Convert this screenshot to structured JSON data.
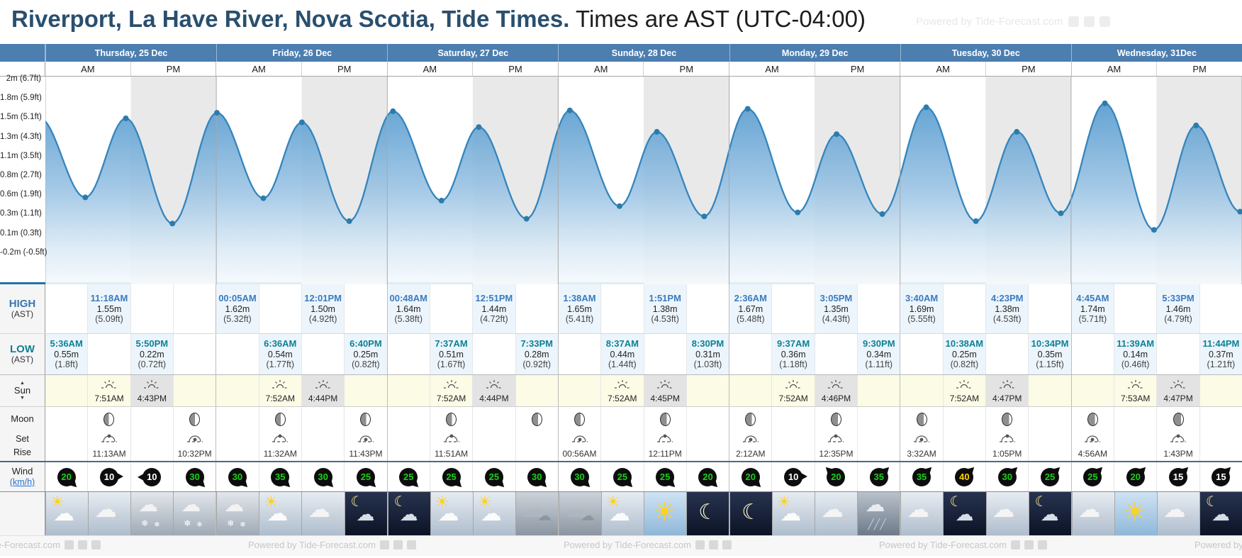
{
  "header": {
    "title": "Riverport, La Have River, Nova Scotia, Tide Times.",
    "subtitle": " Times are AST (UTC-04:00)",
    "watermark": "Powered by Tide-Forecast.com"
  },
  "table": {
    "days": [
      "Thursday, 25 Dec",
      "Friday, 26 Dec",
      "Saturday, 27 Dec",
      "Sunday, 28 Dec",
      "Monday, 29 Dec",
      "Tuesday, 30 Dec",
      "Wednesday, 31Dec"
    ],
    "meridiem": [
      "AM",
      "PM"
    ]
  },
  "chart_data": {
    "type": "area",
    "title": "7-day tide height curve",
    "ylabel_ticks": [
      "2m (6.7ft)",
      "1.8m (5.9ft)",
      "1.5m (5.1ft)",
      "1.3m (4.3ft)",
      "1.1m (3.5ft)",
      "0.8m (2.7ft)",
      "0.6m (1.9ft)",
      "0.3m (1.1ft)",
      "0.1m (0.3ft)",
      "-0.2m (-0.5ft)"
    ],
    "ylim_ft": [
      -0.5,
      6.7
    ],
    "x_unit": "hours from Thursday 00:00",
    "edge_start": {
      "hour": -0.9,
      "m": 1.56
    },
    "edge_end": {
      "hour": 173.6,
      "m": 1.82
    },
    "extremes": [
      {
        "day": 0,
        "kind": "low",
        "time": "5:36AM",
        "hour": 5.6,
        "m": 0.55,
        "m_label": "0.55m",
        "ft_label": "(1.8ft)"
      },
      {
        "day": 0,
        "kind": "high",
        "time": "11:18AM",
        "hour": 11.3,
        "m": 1.55,
        "m_label": "1.55m",
        "ft_label": "(5.09ft)"
      },
      {
        "day": 0,
        "kind": "low",
        "time": "5:50PM",
        "hour": 17.833,
        "m": 0.22,
        "m_label": "0.22m",
        "ft_label": "(0.72ft)"
      },
      {
        "day": 1,
        "kind": "high",
        "time": "00:05AM",
        "hour": 24.083,
        "m": 1.62,
        "m_label": "1.62m",
        "ft_label": "(5.32ft)"
      },
      {
        "day": 1,
        "kind": "low",
        "time": "6:36AM",
        "hour": 30.6,
        "m": 0.54,
        "m_label": "0.54m",
        "ft_label": "(1.77ft)"
      },
      {
        "day": 1,
        "kind": "high",
        "time": "12:01PM",
        "hour": 36.017,
        "m": 1.5,
        "m_label": "1.50m",
        "ft_label": "(4.92ft)"
      },
      {
        "day": 1,
        "kind": "low",
        "time": "6:40PM",
        "hour": 42.667,
        "m": 0.25,
        "m_label": "0.25m",
        "ft_label": "(0.82ft)"
      },
      {
        "day": 2,
        "kind": "high",
        "time": "00:48AM",
        "hour": 48.8,
        "m": 1.64,
        "m_label": "1.64m",
        "ft_label": "(5.38ft)"
      },
      {
        "day": 2,
        "kind": "low",
        "time": "7:37AM",
        "hour": 55.617,
        "m": 0.51,
        "m_label": "0.51m",
        "ft_label": "(1.67ft)"
      },
      {
        "day": 2,
        "kind": "high",
        "time": "12:51PM",
        "hour": 60.85,
        "m": 1.44,
        "m_label": "1.44m",
        "ft_label": "(4.72ft)"
      },
      {
        "day": 2,
        "kind": "low",
        "time": "7:33PM",
        "hour": 67.55,
        "m": 0.28,
        "m_label": "0.28m",
        "ft_label": "(0.92ft)"
      },
      {
        "day": 3,
        "kind": "high",
        "time": "1:38AM",
        "hour": 73.633,
        "m": 1.65,
        "m_label": "1.65m",
        "ft_label": "(5.41ft)"
      },
      {
        "day": 3,
        "kind": "low",
        "time": "8:37AM",
        "hour": 80.617,
        "m": 0.44,
        "m_label": "0.44m",
        "ft_label": "(1.44ft)"
      },
      {
        "day": 3,
        "kind": "high",
        "time": "1:51PM",
        "hour": 85.85,
        "m": 1.38,
        "m_label": "1.38m",
        "ft_label": "(4.53ft)"
      },
      {
        "day": 3,
        "kind": "low",
        "time": "8:30PM",
        "hour": 92.5,
        "m": 0.31,
        "m_label": "0.31m",
        "ft_label": "(1.03ft)"
      },
      {
        "day": 4,
        "kind": "high",
        "time": "2:36AM",
        "hour": 98.6,
        "m": 1.67,
        "m_label": "1.67m",
        "ft_label": "(5.48ft)"
      },
      {
        "day": 4,
        "kind": "low",
        "time": "9:37AM",
        "hour": 105.617,
        "m": 0.36,
        "m_label": "0.36m",
        "ft_label": "(1.18ft)"
      },
      {
        "day": 4,
        "kind": "high",
        "time": "3:05PM",
        "hour": 111.083,
        "m": 1.35,
        "m_label": "1.35m",
        "ft_label": "(4.43ft)"
      },
      {
        "day": 4,
        "kind": "low",
        "time": "9:30PM",
        "hour": 117.5,
        "m": 0.34,
        "m_label": "0.34m",
        "ft_label": "(1.11ft)"
      },
      {
        "day": 5,
        "kind": "high",
        "time": "3:40AM",
        "hour": 123.667,
        "m": 1.69,
        "m_label": "1.69m",
        "ft_label": "(5.55ft)"
      },
      {
        "day": 5,
        "kind": "low",
        "time": "10:38AM",
        "hour": 130.633,
        "m": 0.25,
        "m_label": "0.25m",
        "ft_label": "(0.82ft)"
      },
      {
        "day": 5,
        "kind": "high",
        "time": "4:23PM",
        "hour": 136.383,
        "m": 1.38,
        "m_label": "1.38m",
        "ft_label": "(4.53ft)"
      },
      {
        "day": 5,
        "kind": "low",
        "time": "10:34PM",
        "hour": 142.567,
        "m": 0.35,
        "m_label": "0.35m",
        "ft_label": "(1.15ft)"
      },
      {
        "day": 6,
        "kind": "high",
        "time": "4:45AM",
        "hour": 148.75,
        "m": 1.74,
        "m_label": "1.74m",
        "ft_label": "(5.71ft)"
      },
      {
        "day": 6,
        "kind": "low",
        "time": "11:39AM",
        "hour": 155.65,
        "m": 0.14,
        "m_label": "0.14m",
        "ft_label": "(0.46ft)"
      },
      {
        "day": 6,
        "kind": "high",
        "time": "5:33PM",
        "hour": 161.55,
        "m": 1.46,
        "m_label": "1.46m",
        "ft_label": "(4.79ft)"
      },
      {
        "day": 6,
        "kind": "low",
        "time": "11:44PM",
        "hour": 167.733,
        "m": 0.37,
        "m_label": "0.37m",
        "ft_label": "(1.21ft)"
      }
    ]
  },
  "high_row": {
    "label": "HIGH",
    "zone": "(AST)"
  },
  "low_row": {
    "label": "LOW",
    "zone": "(AST)"
  },
  "sun_row": {
    "label": "Sun",
    "entries": [
      {
        "day": 0,
        "q": 1,
        "kind": "rise",
        "time": "7:51AM"
      },
      {
        "day": 0,
        "q": 2,
        "kind": "set",
        "time": "4:43PM"
      },
      {
        "day": 1,
        "q": 1,
        "kind": "rise",
        "time": "7:52AM"
      },
      {
        "day": 1,
        "q": 2,
        "kind": "set",
        "time": "4:44PM"
      },
      {
        "day": 2,
        "q": 1,
        "kind": "rise",
        "time": "7:52AM"
      },
      {
        "day": 2,
        "q": 2,
        "kind": "set",
        "time": "4:44PM"
      },
      {
        "day": 3,
        "q": 1,
        "kind": "rise",
        "time": "7:52AM"
      },
      {
        "day": 3,
        "q": 2,
        "kind": "set",
        "time": "4:45PM"
      },
      {
        "day": 4,
        "q": 1,
        "kind": "rise",
        "time": "7:52AM"
      },
      {
        "day": 4,
        "q": 2,
        "kind": "set",
        "time": "4:46PM"
      },
      {
        "day": 5,
        "q": 1,
        "kind": "rise",
        "time": "7:52AM"
      },
      {
        "day": 5,
        "q": 2,
        "kind": "set",
        "time": "4:47PM"
      },
      {
        "day": 6,
        "q": 1,
        "kind": "rise",
        "time": "7:53AM"
      },
      {
        "day": 6,
        "q": 2,
        "kind": "set",
        "time": "4:47PM"
      }
    ]
  },
  "moon_row": {
    "label": "Moon",
    "entries": [
      {
        "day": 0,
        "q": 1,
        "dark": 50
      },
      {
        "day": 0,
        "q": 3,
        "dark": 52
      },
      {
        "day": 1,
        "q": 1,
        "dark": 54
      },
      {
        "day": 1,
        "q": 3,
        "dark": 56
      },
      {
        "day": 2,
        "q": 1,
        "dark": 58
      },
      {
        "day": 2,
        "q": 3,
        "dark": 60
      },
      {
        "day": 3,
        "q": 0,
        "dark": 62
      },
      {
        "day": 3,
        "q": 2,
        "dark": 64
      },
      {
        "day": 4,
        "q": 0,
        "dark": 66
      },
      {
        "day": 4,
        "q": 2,
        "dark": 68
      },
      {
        "day": 5,
        "q": 0,
        "dark": 70
      },
      {
        "day": 5,
        "q": 2,
        "dark": 72
      },
      {
        "day": 6,
        "q": 0,
        "dark": 74
      },
      {
        "day": 6,
        "q": 2,
        "dark": 76
      }
    ]
  },
  "setrise_row": {
    "labels": [
      "Set",
      "Rise"
    ],
    "entries": [
      {
        "day": 0,
        "q": 1,
        "kind": "set",
        "time": "11:13AM"
      },
      {
        "day": 0,
        "q": 3,
        "kind": "rise",
        "time": "10:32PM"
      },
      {
        "day": 1,
        "q": 1,
        "kind": "set",
        "time": "11:32AM"
      },
      {
        "day": 1,
        "q": 3,
        "kind": "rise",
        "time": "11:43PM"
      },
      {
        "day": 2,
        "q": 1,
        "kind": "set",
        "time": "11:51AM"
      },
      {
        "day": 3,
        "q": 0,
        "kind": "rise",
        "time": "00:56AM"
      },
      {
        "day": 3,
        "q": 2,
        "kind": "set",
        "time": "12:11PM"
      },
      {
        "day": 4,
        "q": 0,
        "kind": "rise",
        "time": "2:12AM"
      },
      {
        "day": 4,
        "q": 2,
        "kind": "set",
        "time": "12:35PM"
      },
      {
        "day": 5,
        "q": 0,
        "kind": "rise",
        "time": "3:32AM"
      },
      {
        "day": 5,
        "q": 2,
        "kind": "set",
        "time": "1:05PM"
      },
      {
        "day": 6,
        "q": 0,
        "kind": "rise",
        "time": "4:56AM"
      },
      {
        "day": 6,
        "q": 2,
        "kind": "set",
        "time": "1:43PM"
      }
    ]
  },
  "wind_row": {
    "label": "Wind",
    "unit": "(km/h)",
    "cells": [
      {
        "v": 20,
        "c": "green",
        "dir": 45
      },
      {
        "v": 10,
        "c": "white",
        "dir": 0
      },
      {
        "v": 10,
        "c": "white",
        "dir": 180
      },
      {
        "v": 30,
        "c": "green",
        "dir": 45
      },
      {
        "v": 30,
        "c": "green",
        "dir": 45
      },
      {
        "v": 35,
        "c": "green",
        "dir": 45
      },
      {
        "v": 30,
        "c": "green",
        "dir": 45
      },
      {
        "v": 25,
        "c": "green",
        "dir": 45
      },
      {
        "v": 25,
        "c": "green",
        "dir": 45
      },
      {
        "v": 25,
        "c": "green",
        "dir": 45
      },
      {
        "v": 25,
        "c": "green",
        "dir": 45
      },
      {
        "v": 30,
        "c": "green",
        "dir": 45
      },
      {
        "v": 30,
        "c": "green",
        "dir": 45
      },
      {
        "v": 25,
        "c": "green",
        "dir": 45
      },
      {
        "v": 25,
        "c": "green",
        "dir": 45
      },
      {
        "v": 20,
        "c": "green",
        "dir": 45
      },
      {
        "v": 20,
        "c": "green",
        "dir": 45
      },
      {
        "v": 10,
        "c": "white",
        "dir": 0
      },
      {
        "v": 20,
        "c": "green",
        "dir": -135
      },
      {
        "v": 35,
        "c": "green",
        "dir": -45
      },
      {
        "v": 35,
        "c": "green",
        "dir": -45
      },
      {
        "v": 40,
        "c": "yellow",
        "dir": -45
      },
      {
        "v": 30,
        "c": "green",
        "dir": -45
      },
      {
        "v": 25,
        "c": "green",
        "dir": -45
      },
      {
        "v": 25,
        "c": "green",
        "dir": -45
      },
      {
        "v": 20,
        "c": "green",
        "dir": -45
      },
      {
        "v": 15,
        "c": "white",
        "dir": -45
      },
      {
        "v": 15,
        "c": "white",
        "dir": -45
      }
    ]
  },
  "weather_row": {
    "cells": [
      "sun-cloud",
      "cloud",
      "snow",
      "snow",
      "snow",
      "sun-cloud",
      "cloud",
      "moon-cloud",
      "moon-cloud",
      "sun-cloud",
      "sun-cloud",
      "cloud-dark",
      "cloud-dark",
      "sun-cloud",
      "sun",
      "moon",
      "moon",
      "sun-cloud",
      "cloud",
      "rain",
      "cloud",
      "moon-cloud",
      "cloud",
      "moon-cloud",
      "cloud",
      "sun",
      "cloud",
      "moon-cloud"
    ]
  },
  "footer": {
    "text": "Powered by Tide-Forecast.com"
  },
  "colors": {
    "header_blue": "#4c7eb0",
    "high_blue": "#3a7bbf",
    "low_teal": "#0e8095",
    "curve": "#3585bd",
    "dot": "#2c7cab",
    "stripe": "#e9e9e9",
    "sun_bg": "#fbfbe6",
    "sunset_bg": "#e3e3e3",
    "wind_green": "#19cf19",
    "wind_yellow": "#ffd400",
    "wind_white": "#ffffff",
    "link": "#2a6fc9"
  }
}
